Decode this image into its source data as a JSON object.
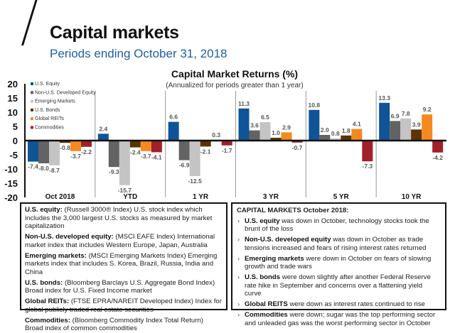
{
  "header": {
    "title": "Capital markets",
    "subtitle": "Periods ending October 31, 2018"
  },
  "chart_data": {
    "type": "bar",
    "title": "Capital Market Returns (%)",
    "subtitle": "(Annualized for periods greater than 1 year)",
    "xlabel": "",
    "ylabel": "",
    "ylim": [
      -20,
      20
    ],
    "yticks": [
      20,
      15,
      10,
      5,
      0,
      -5,
      -10,
      -15,
      -20
    ],
    "legend_placement": "top-left",
    "categories": [
      "Oct 2018",
      "YTD",
      "1 YR",
      "3 YR",
      "5 YR",
      "10 YR"
    ],
    "series": [
      {
        "name": "U.S. Equity",
        "color": "#0f5497",
        "values": [
          -7.4,
          2.4,
          6.6,
          11.3,
          10.8,
          13.3
        ]
      },
      {
        "name": "Non-U.S. Developed Equity",
        "color": "#636363",
        "values": [
          -8.0,
          -9.3,
          -6.9,
          3.6,
          2.0,
          6.9
        ]
      },
      {
        "name": "Emerging Markets",
        "color": "#c4c4c4",
        "values": [
          -8.7,
          -15.7,
          -12.5,
          6.5,
          0.8,
          7.8
        ]
      },
      {
        "name": "U.S. Bonds",
        "color": "#5b3305",
        "values": [
          -0.8,
          -2.4,
          -2.1,
          1.0,
          1.8,
          3.9
        ]
      },
      {
        "name": "Global REITs",
        "color": "#f5891f",
        "values": [
          -3.7,
          -3.7,
          0.3,
          2.9,
          4.1,
          9.2
        ]
      },
      {
        "name": "Commodities",
        "color": "#a2202a",
        "values": [
          -2.2,
          -4.1,
          -1.7,
          -0.7,
          -7.3,
          -4.2
        ]
      }
    ]
  },
  "definitions": [
    {
      "term": "U.S. equity:",
      "text": " (Russell 3000® Index) U.S. stock index which includes the 3,000 largest U.S. stocks as measured by market capitalization"
    },
    {
      "term": "Non-U.S. developed equity:",
      "text": " (MSCI EAFE Index) International market index that includes Western Europe, Japan, Australia"
    },
    {
      "term": "Emerging markets:",
      "text": " (MSCI Emerging Markets Index) Emerging markets index that includes S. Korea, Brazil, Russia, India and China"
    },
    {
      "term": "U.S. bonds:",
      "text": "  (Bloomberg Barclays U.S. Aggregate Bond Index) Broad index for U.S. Fixed Income market"
    },
    {
      "term": "Global REITs:",
      "text": "  (FTSE EPRA/NAREIT Developed  Index) Index for global publicly traded real estate securities"
    },
    {
      "term": "Commodities:",
      "text": " (Bloomberg  Commodity Index Total Return) Broad index of common commodities"
    }
  ],
  "summary": {
    "heading": "CAPITAL MARKETS  October 2018:",
    "bullets": [
      {
        "term": "U.S. equity",
        "text": " was down in October, technology stocks took the brunt of the loss"
      },
      {
        "term": "Non-U.S. developed equity",
        "text": " was down in October as trade tensions increased and fears of rising interest rates returned"
      },
      {
        "term": "Emerging markets",
        "text": " were down in October on fears of slowing growth and trade wars"
      },
      {
        "term": "U.S. bonds",
        "text": " were down slightly after another Federal Reserve rate hike in September and concerns over a flattening yield curve"
      },
      {
        "term": "Global REITS",
        "text": " were down as interest rates continued to rise"
      },
      {
        "term": "Commodities",
        "text": " were down; sugar was the top performing sector and unleaded gas was the worst performing sector in October"
      }
    ]
  }
}
